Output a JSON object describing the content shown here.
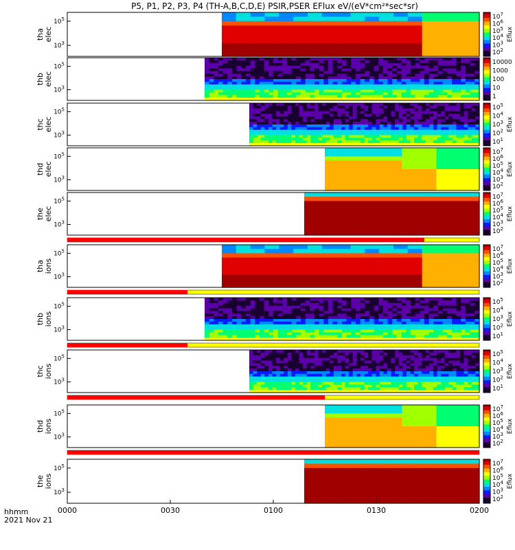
{
  "chart_data": {
    "type": "heatmap",
    "title": "P5, P1, P2, P3, P4 (TH-A,B,C,D,E) PSIR,PSER EFlux eV/(eV*cm²*sec*sr)",
    "x_ticks": [
      "0000",
      "0030",
      "0100",
      "0130",
      "0200"
    ],
    "x_range_minutes": [
      0,
      120
    ],
    "footer": {
      "line1": "hhmm",
      "line2": "2021 Nov 21"
    },
    "panels": [
      {
        "id": "tha_elec",
        "label_top": "tha",
        "label_bottom": "elec",
        "y_ticks": [
          {
            "base": "10",
            "exp": "5",
            "pos": 0.2
          },
          {
            "base": "10",
            "exp": "3",
            "pos": 0.75
          }
        ],
        "data_start_min": 45,
        "style": "smooth",
        "band_top": "#3a8cff",
        "colorbar": {
          "ticks": [
            "10^7",
            "10^6",
            "10^5",
            "10^4",
            "10^3",
            "10^2"
          ],
          "label": "Eflux"
        }
      },
      {
        "id": "thb_elec",
        "label_top": "thb",
        "label_bottom": "elec",
        "y_ticks": [
          {
            "base": "10",
            "exp": "5",
            "pos": 0.2
          },
          {
            "base": "10",
            "exp": "3",
            "pos": 0.75
          }
        ],
        "data_start_min": 40,
        "style": "noisy",
        "colorbar": {
          "ticks": [
            "10000",
            "1000",
            "100",
            "10",
            "1"
          ],
          "label": ""
        }
      },
      {
        "id": "thc_elec",
        "label_top": "thc",
        "label_bottom": "elec",
        "y_ticks": [
          {
            "base": "10",
            "exp": "5",
            "pos": 0.2
          },
          {
            "base": "10",
            "exp": "3",
            "pos": 0.75
          }
        ],
        "data_start_min": 53,
        "style": "noisy",
        "colorbar": {
          "ticks": [
            "10^5",
            "10^4",
            "10^3",
            "10^2",
            "10^1"
          ],
          "label": "Eflux"
        }
      },
      {
        "id": "thd_elec",
        "label_top": "thd",
        "label_bottom": "elec",
        "y_ticks": [
          {
            "base": "10",
            "exp": "5",
            "pos": 0.2
          },
          {
            "base": "10",
            "exp": "3",
            "pos": 0.75
          }
        ],
        "data_start_min": 75,
        "style": "orange",
        "colorbar": {
          "ticks": [
            "10^7",
            "10^6",
            "10^5",
            "10^4",
            "10^3",
            "10^2"
          ],
          "label": "Eflux"
        }
      },
      {
        "id": "the_elec",
        "label_top": "the",
        "label_bottom": "elec",
        "y_ticks": [
          {
            "base": "10",
            "exp": "5",
            "pos": 0.2
          },
          {
            "base": "10",
            "exp": "3",
            "pos": 0.75
          }
        ],
        "data_start_min": 69,
        "style": "dark",
        "colorbar": {
          "ticks": [
            "10^7",
            "10^6",
            "10^5",
            "10^4",
            "10^3",
            "10^2"
          ],
          "label": "Eflux"
        }
      },
      {
        "id": "tha_ions",
        "label_top": "tha",
        "label_bottom": "ions",
        "y_ticks": [
          {
            "base": "10",
            "exp": "5",
            "pos": 0.2
          },
          {
            "base": "10",
            "exp": "3",
            "pos": 0.75
          }
        ],
        "data_start_min": 45,
        "style": "smooth",
        "colorbar": {
          "ticks": [
            "10^7",
            "10^6",
            "10^5",
            "10^4",
            "10^3",
            "10^2"
          ],
          "label": "Eflux"
        }
      },
      {
        "id": "thb_ions",
        "label_top": "thb",
        "label_bottom": "ions",
        "y_ticks": [
          {
            "base": "10",
            "exp": "5",
            "pos": 0.2
          },
          {
            "base": "10",
            "exp": "3",
            "pos": 0.75
          }
        ],
        "data_start_min": 40,
        "style": "noisy",
        "colorbar": {
          "ticks": [
            "10^5",
            "10^4",
            "10^3",
            "10^2",
            "10^1"
          ],
          "label": "Eflux"
        }
      },
      {
        "id": "thc_ions",
        "label_top": "thc",
        "label_bottom": "ions",
        "y_ticks": [
          {
            "base": "10",
            "exp": "5",
            "pos": 0.2
          },
          {
            "base": "10",
            "exp": "3",
            "pos": 0.75
          }
        ],
        "data_start_min": 53,
        "style": "noisy",
        "colorbar": {
          "ticks": [
            "10^5",
            "10^4",
            "10^3",
            "10^2",
            "10^1"
          ],
          "label": "Eflux"
        }
      },
      {
        "id": "thd_ions",
        "label_top": "thd",
        "label_bottom": "ions",
        "y_ticks": [
          {
            "base": "10",
            "exp": "5",
            "pos": 0.2
          },
          {
            "base": "10",
            "exp": "3",
            "pos": 0.75
          }
        ],
        "data_start_min": 75,
        "style": "orange",
        "colorbar": {
          "ticks": [
            "10^7",
            "10^6",
            "10^5",
            "10^4",
            "10^3",
            "10^2"
          ],
          "label": "Eflux"
        }
      },
      {
        "id": "the_ions",
        "label_top": "the",
        "label_bottom": "ions",
        "y_ticks": [
          {
            "base": "10",
            "exp": "5",
            "pos": 0.2
          },
          {
            "base": "10",
            "exp": "3",
            "pos": 0.75
          }
        ],
        "data_start_min": 69,
        "style": "dark",
        "colorbar": {
          "ticks": [
            "10^7",
            "10^6",
            "10^5",
            "10^4",
            "10^3",
            "10^2"
          ],
          "label": "Eflux"
        }
      }
    ],
    "flag_bars": [
      {
        "after_panel": "the_elec",
        "red_until_min": 104,
        "style": "red"
      },
      {
        "after_panel": "tha_ions",
        "red_until_min": 35,
        "style": "red-yellow"
      },
      {
        "after_panel": "thb_ions",
        "red_until_min": 35,
        "style": "red-yellow"
      },
      {
        "after_panel": "thc_ions",
        "red_until_min": 75,
        "style": "red"
      },
      {
        "after_panel": "thd_ions",
        "red_until_min": 120,
        "style": "red"
      }
    ],
    "colormap": [
      "#1a0030",
      "#5b00a8",
      "#0a1aff",
      "#0088ff",
      "#00e0e0",
      "#00ff70",
      "#a0ff00",
      "#ffff00",
      "#ffb000",
      "#ff5000",
      "#e00000",
      "#a00000"
    ]
  }
}
